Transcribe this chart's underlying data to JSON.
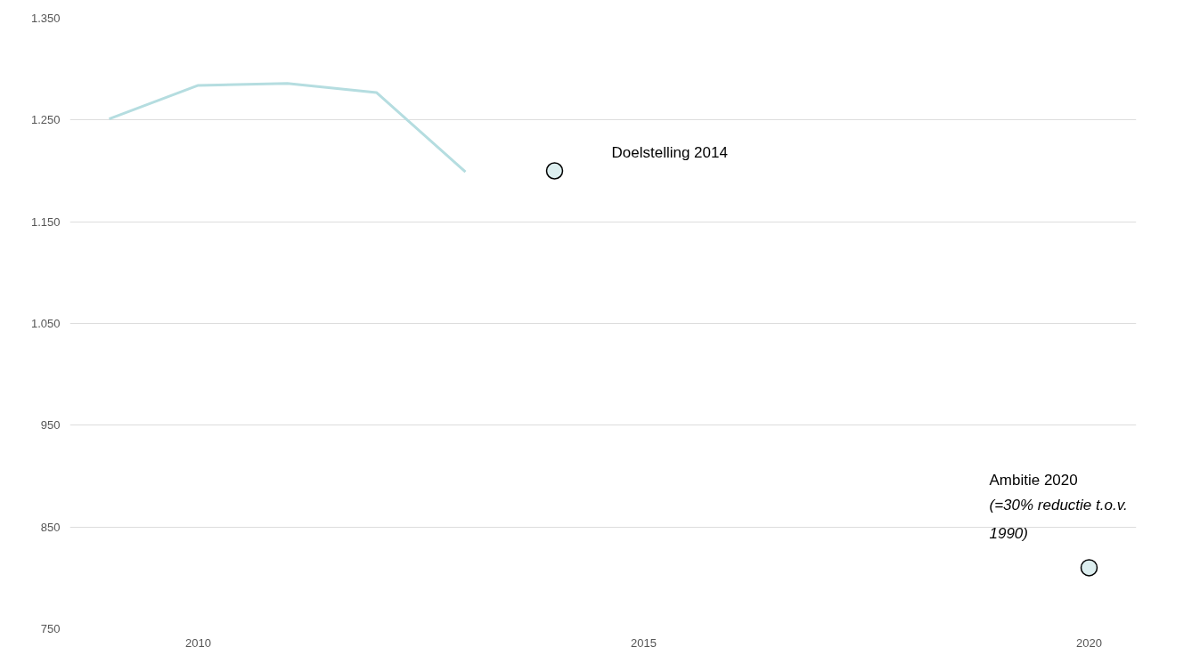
{
  "chart_data": {
    "type": "line",
    "series": [
      {
        "color": "#b5dde0",
        "x": [
          2009,
          2010,
          2011,
          2012,
          2013
        ],
        "values": [
          1251,
          1284,
          1286,
          1277,
          1199
        ]
      },
      {
        "type": "scatter",
        "color": "#dceeef",
        "x": [
          2014,
          2020
        ],
        "values": [
          1200,
          810
        ],
        "marker": "circle"
      }
    ],
    "xlim": [
      2008.56,
      2020.53
    ],
    "xticks": [
      2010,
      2015,
      2020
    ],
    "ylim": [
      750,
      1350
    ],
    "yticks": [
      750,
      850,
      950,
      {
        "value": 1050,
        "label": "1.050"
      },
      {
        "value": 1150,
        "label": "1.150"
      },
      {
        "value": 1250,
        "label": "1.250"
      },
      {
        "value": 1350,
        "label": "1.350"
      }
    ],
    "grid": "y",
    "annotations": [
      "Doelstelling 2014",
      "Ambitie 2020",
      "(=30% reductie t.o.v. 1990)"
    ]
  }
}
